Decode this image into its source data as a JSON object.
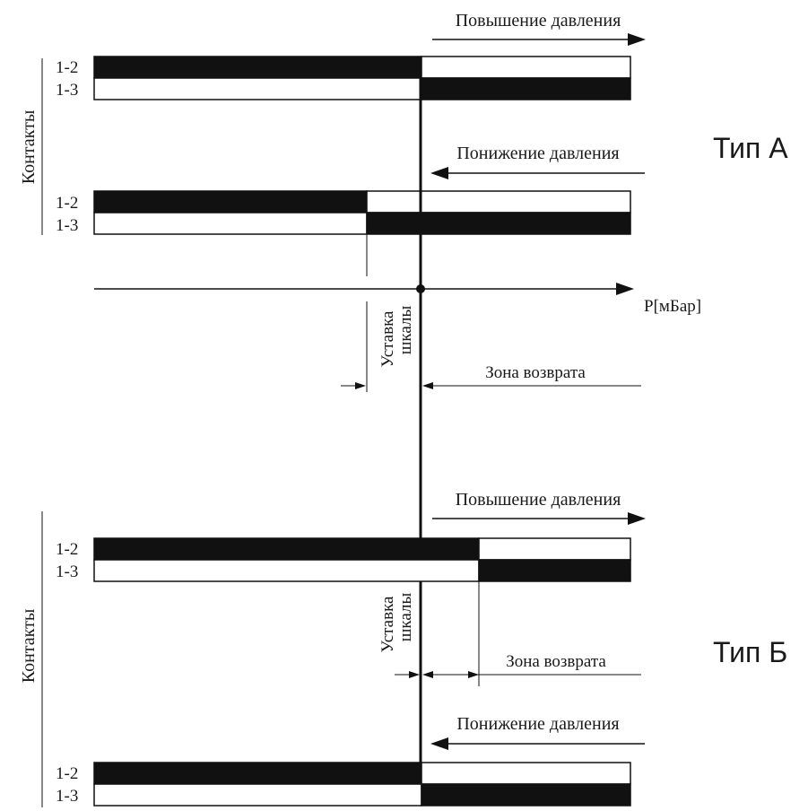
{
  "type_a": {
    "title": "Тип А",
    "side_label": "Контакты",
    "rise": {
      "label": "Повышение давления",
      "contact_1_2": "1-2",
      "contact_1_3": "1-3"
    },
    "fall": {
      "label": "Понижение давления",
      "contact_1_2": "1-2",
      "contact_1_3": "1-3"
    },
    "axis_label": "P[мБар]",
    "setpoint_label_line1": "Уставка",
    "setpoint_label_line2": "шкалы",
    "return_zone_label": "Зона возврата"
  },
  "type_b": {
    "title": "Тип Б",
    "side_label": "Контакты",
    "rise": {
      "label": "Повышение давления",
      "contact_1_2": "1-2",
      "contact_1_3": "1-3"
    },
    "fall": {
      "label": "Понижение давления",
      "contact_1_2": "1-2",
      "contact_1_3": "1-3"
    },
    "setpoint_label_line1": "Уставка",
    "setpoint_label_line2": "шкалы",
    "return_zone_label": "Зона возврата"
  },
  "colors": {
    "ink": "#111111",
    "background": "#ffffff"
  }
}
